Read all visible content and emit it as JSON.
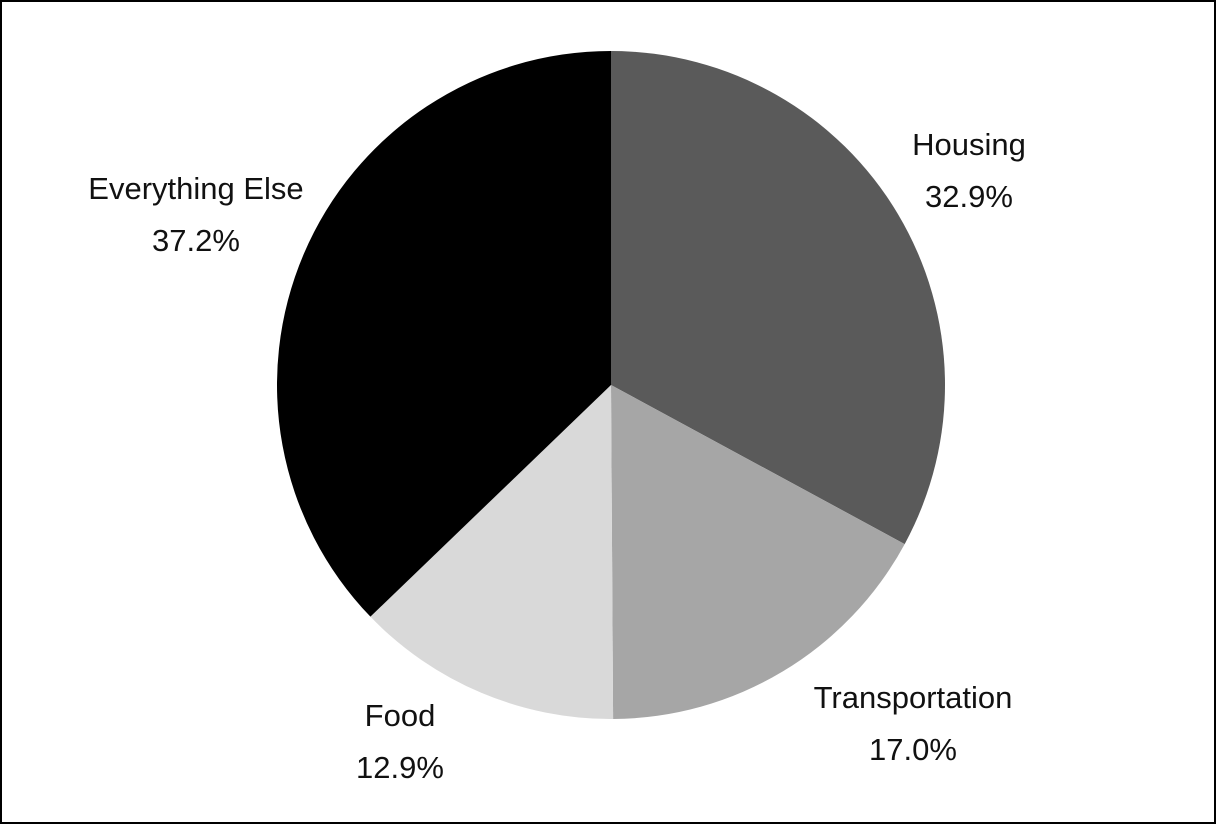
{
  "chart_data": {
    "type": "pie",
    "title": "",
    "start": "12 o'clock, clockwise",
    "slices": [
      {
        "label": "Housing",
        "value": 32.9,
        "value_label": "32.9%",
        "color": "#5a5a5a"
      },
      {
        "label": "Transportation",
        "value": 17.0,
        "value_label": "17.0%",
        "color": "#a6a6a6"
      },
      {
        "label": "Food",
        "value": 12.9,
        "value_label": "12.9%",
        "color": "#d9d9d9"
      },
      {
        "label": "Everything Else",
        "value": 37.2,
        "value_label": "37.2%",
        "color": "#000000"
      }
    ]
  }
}
